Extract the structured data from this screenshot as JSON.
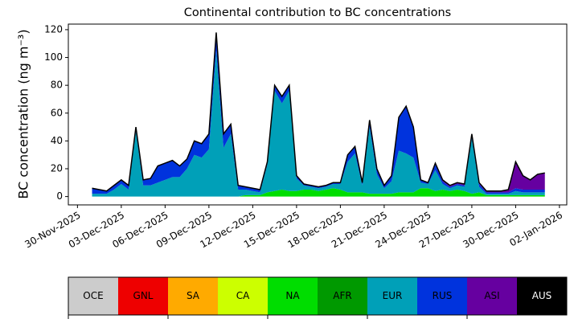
{
  "chart_data": {
    "type": "stacked_area",
    "title": "Continental contribution to BC concentrations",
    "ylabel": "BC concentration (ng m⁻³)",
    "x": [
      "2025-12-01T00:00",
      "2025-12-01T12:00",
      "2025-12-02T00:00",
      "2025-12-02T12:00",
      "2025-12-03T00:00",
      "2025-12-03T12:00",
      "2025-12-04T00:00",
      "2025-12-04T12:00",
      "2025-12-05T00:00",
      "2025-12-05T12:00",
      "2025-12-06T00:00",
      "2025-12-06T12:00",
      "2025-12-07T00:00",
      "2025-12-07T12:00",
      "2025-12-08T00:00",
      "2025-12-08T12:00",
      "2025-12-09T00:00",
      "2025-12-09T12:00",
      "2025-12-10T00:00",
      "2025-12-10T12:00",
      "2025-12-11T00:00",
      "2025-12-11T12:00",
      "2025-12-12T00:00",
      "2025-12-12T12:00",
      "2025-12-13T00:00",
      "2025-12-13T12:00",
      "2025-12-14T00:00",
      "2025-12-14T12:00",
      "2025-12-15T00:00",
      "2025-12-15T12:00",
      "2025-12-16T00:00",
      "2025-12-16T12:00",
      "2025-12-17T00:00",
      "2025-12-17T12:00",
      "2025-12-18T00:00",
      "2025-12-18T12:00",
      "2025-12-19T00:00",
      "2025-12-19T12:00",
      "2025-12-20T00:00",
      "2025-12-20T12:00",
      "2025-12-21T00:00",
      "2025-12-21T12:00",
      "2025-12-22T00:00",
      "2025-12-22T12:00",
      "2025-12-23T00:00",
      "2025-12-23T12:00",
      "2025-12-24T00:00",
      "2025-12-24T12:00",
      "2025-12-25T00:00",
      "2025-12-25T12:00",
      "2025-12-26T00:00",
      "2025-12-26T12:00",
      "2025-12-27T00:00",
      "2025-12-27T12:00",
      "2025-12-28T00:00",
      "2025-12-28T12:00",
      "2025-12-29T00:00",
      "2025-12-29T12:00",
      "2025-12-30T00:00",
      "2025-12-30T12:00",
      "2025-12-31T00:00",
      "2025-12-31T12:00",
      "2026-01-01T00:00"
    ],
    "series": [
      {
        "name": "NA",
        "color": "#00dd00",
        "values": [
          0,
          0,
          0,
          0,
          0,
          0,
          0,
          0,
          0,
          0,
          0,
          0,
          0,
          0,
          0,
          0,
          0,
          0,
          0,
          0,
          0,
          1,
          1,
          1,
          3,
          4,
          5,
          4,
          4,
          5,
          5,
          4,
          5,
          6,
          5,
          3,
          3,
          3,
          2,
          2,
          2,
          2,
          3,
          3,
          3,
          6,
          6,
          4,
          5,
          4,
          5,
          4,
          2,
          3,
          1,
          1,
          1,
          1,
          1,
          1,
          1,
          1,
          1
        ]
      },
      {
        "name": "EUR",
        "color": "#00a0b8",
        "values": [
          2,
          2,
          2,
          5,
          9,
          5,
          47,
          8,
          8,
          10,
          12,
          14,
          14,
          20,
          30,
          28,
          34,
          105,
          35,
          45,
          5,
          4,
          3,
          2,
          20,
          72,
          62,
          72,
          9,
          3,
          2,
          2,
          2,
          3,
          4,
          22,
          28,
          5,
          48,
          14,
          4,
          9,
          30,
          28,
          25,
          4,
          3,
          15,
          4,
          2,
          3,
          3,
          40,
          4,
          1,
          1,
          1,
          1,
          3,
          2,
          2,
          2,
          2
        ]
      },
      {
        "name": "RUS",
        "color": "#0033dd",
        "values": [
          4,
          3,
          2,
          3,
          3,
          3,
          3,
          4,
          5,
          12,
          12,
          12,
          8,
          7,
          10,
          10,
          11,
          13,
          10,
          7,
          3,
          2,
          2,
          2,
          2,
          4,
          5,
          4,
          2,
          1,
          1,
          1,
          1,
          1,
          1,
          5,
          5,
          2,
          5,
          4,
          2,
          4,
          24,
          34,
          22,
          2,
          1,
          4,
          2,
          1,
          1,
          1,
          2,
          2,
          1,
          1,
          1,
          1,
          2,
          2,
          2,
          2,
          2
        ]
      },
      {
        "name": "ASI",
        "color": "#6600a0",
        "values": [
          0,
          0,
          0,
          0,
          0,
          0,
          0,
          0,
          0,
          0,
          0,
          0,
          0,
          0,
          0,
          0,
          0,
          0,
          0,
          0,
          0,
          0,
          0,
          0,
          0,
          0,
          0,
          0,
          0,
          0,
          0,
          0,
          0,
          0,
          0,
          0,
          0,
          0,
          0,
          0,
          0,
          0,
          0,
          0,
          0,
          0,
          0,
          1,
          1,
          1,
          1,
          1,
          1,
          1,
          1,
          1,
          1,
          2,
          19,
          10,
          7,
          11,
          12
        ]
      }
    ],
    "xlim": [
      "2025-11-29T09:00",
      "2026-01-02T12:00"
    ],
    "xticks": [
      {
        "value": "2025-11-30T00:00",
        "label": "30-Nov-2025"
      },
      {
        "value": "2025-12-03T00:00",
        "label": "03-Dec-2025"
      },
      {
        "value": "2025-12-06T00:00",
        "label": "06-Dec-2025"
      },
      {
        "value": "2025-12-09T00:00",
        "label": "09-Dec-2025"
      },
      {
        "value": "2025-12-12T00:00",
        "label": "12-Dec-2025"
      },
      {
        "value": "2025-12-15T00:00",
        "label": "15-Dec-2025"
      },
      {
        "value": "2025-12-18T00:00",
        "label": "18-Dec-2025"
      },
      {
        "value": "2025-12-21T00:00",
        "label": "21-Dec-2025"
      },
      {
        "value": "2025-12-24T00:00",
        "label": "24-Dec-2025"
      },
      {
        "value": "2025-12-27T00:00",
        "label": "27-Dec-2025"
      },
      {
        "value": "2025-12-30T00:00",
        "label": "30-Dec-2025"
      },
      {
        "value": "2026-01-02T00:00",
        "label": "02-Jan-2026"
      }
    ],
    "ylim": [
      -6,
      124
    ],
    "yticks": [
      0,
      20,
      40,
      60,
      80,
      100,
      120
    ],
    "outline_color": "#000000",
    "colorbar": {
      "labels": [
        "OCE",
        "GNL",
        "SA",
        "CA",
        "NA",
        "AFR",
        "EUR",
        "RUS",
        "ASI",
        "AUS"
      ],
      "colors": [
        "#cccccc",
        "#ee0000",
        "#ffaa00",
        "#ccff00",
        "#00dd00",
        "#009900",
        "#00a0b8",
        "#0033dd",
        "#6600a0",
        "#000000"
      ]
    }
  }
}
